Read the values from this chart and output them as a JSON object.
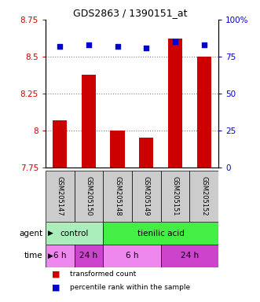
{
  "title": "GDS2863 / 1390151_at",
  "samples": [
    "GSM205147",
    "GSM205150",
    "GSM205148",
    "GSM205149",
    "GSM205151",
    "GSM205152"
  ],
  "bar_values": [
    8.07,
    8.38,
    8.0,
    7.95,
    8.62,
    8.5
  ],
  "dot_values": [
    82,
    83,
    82,
    81,
    85,
    83
  ],
  "ylim_left": [
    7.75,
    8.75
  ],
  "ylim_right": [
    0,
    100
  ],
  "yticks_left": [
    7.75,
    8.0,
    8.25,
    8.5,
    8.75
  ],
  "ytick_labels_left": [
    "7.75",
    "8",
    "8.25",
    "8.5",
    "8.75"
  ],
  "yticks_right": [
    0,
    25,
    50,
    75,
    100
  ],
  "ytick_labels_right": [
    "0",
    "25",
    "50",
    "75",
    "100%"
  ],
  "bar_color": "#cc0000",
  "dot_color": "#0000cc",
  "bar_bottom": 7.75,
  "agent_labels": [
    {
      "text": "control",
      "start": 0,
      "end": 2,
      "color": "#aaeebb"
    },
    {
      "text": "tienilic acid",
      "start": 2,
      "end": 6,
      "color": "#44ee44"
    }
  ],
  "time_labels": [
    {
      "text": "6 h",
      "start": 0,
      "end": 1,
      "color": "#ee88ee"
    },
    {
      "text": "24 h",
      "start": 1,
      "end": 2,
      "color": "#cc44cc"
    },
    {
      "text": "6 h",
      "start": 2,
      "end": 4,
      "color": "#ee88ee"
    },
    {
      "text": "24 h",
      "start": 4,
      "end": 6,
      "color": "#cc44cc"
    }
  ],
  "tick_color_left": "#cc0000",
  "tick_color_right": "#0000cc",
  "bar_width": 0.5,
  "sample_box_color": "#cccccc",
  "legend_items": [
    {
      "label": "transformed count",
      "color": "#cc0000"
    },
    {
      "label": "percentile rank within the sample",
      "color": "#0000cc"
    }
  ],
  "fig_width": 3.31,
  "fig_height": 3.84,
  "dpi": 100
}
